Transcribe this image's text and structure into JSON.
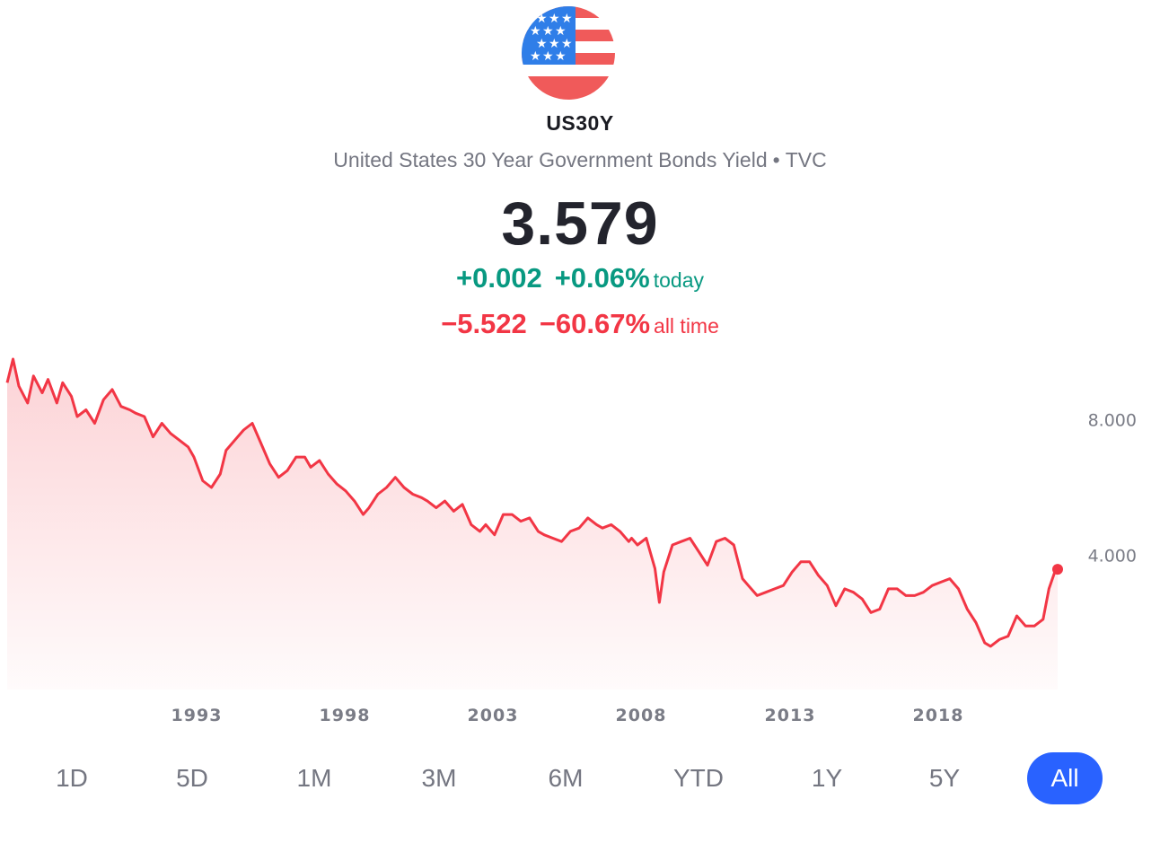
{
  "header": {
    "flag_icon": "us-flag-icon",
    "symbol": "US30Y",
    "name": "United States 30 Year Government Bonds Yield",
    "separator": "•",
    "exchange": "TVC"
  },
  "quote": {
    "price": "3.579",
    "today_change": "+0.002",
    "today_change_pct": "+0.06%",
    "today_label": "today",
    "alltime_change": "−5.522",
    "alltime_change_pct": "−60.67%",
    "alltime_label": "all time"
  },
  "colors": {
    "line": "#f23645",
    "positive": "#089981",
    "negative": "#f23645",
    "active_range": "#2962ff"
  },
  "chart_data": {
    "type": "area",
    "y_axis_labels": [
      "8.000",
      "4.000"
    ],
    "x_tick_labels": [
      "1993",
      "1998",
      "2003",
      "2008",
      "2013",
      "2018"
    ],
    "ylim": [
      0.5,
      9.8
    ],
    "xlim": [
      1986.6,
      2022.6
    ],
    "grid": false,
    "series": [
      {
        "x": [
          1986.6,
          1986.8,
          1987.0,
          1987.3,
          1987.5,
          1987.8,
          1988.0,
          1988.3,
          1988.5,
          1988.8,
          1989.0,
          1989.3,
          1989.6,
          1989.9,
          1990.2,
          1990.5,
          1990.8,
          1991.0,
          1991.3,
          1991.6,
          1991.9,
          1992.2,
          1992.5,
          1992.8,
          1993.0,
          1993.3,
          1993.6,
          1993.9,
          1994.1,
          1994.4,
          1994.7,
          1995.0,
          1995.3,
          1995.6,
          1995.9,
          1996.2,
          1996.5,
          1996.8,
          1997.0,
          1997.3,
          1997.6,
          1997.9,
          1998.2,
          1998.5,
          1998.8,
          1999.0,
          1999.3,
          1999.6,
          1999.9,
          2000.2,
          2000.5,
          2000.8,
          2001.0,
          2001.3,
          2001.6,
          2001.9,
          2002.2,
          2002.5,
          2002.8,
          2003.0,
          2003.3,
          2003.6,
          2003.9,
          2004.2,
          2004.5,
          2004.8,
          2005.0,
          2005.3,
          2005.6,
          2005.9,
          2006.2,
          2006.5,
          2006.8,
          2007.0,
          2007.3,
          2007.6,
          2007.9,
          2008.0,
          2008.2,
          2008.5,
          2008.8,
          2008.95,
          2009.1,
          2009.4,
          2009.7,
          2010.0,
          2010.3,
          2010.6,
          2010.9,
          2011.2,
          2011.5,
          2011.8,
          2012.0,
          2012.3,
          2012.6,
          2012.9,
          2013.2,
          2013.5,
          2013.8,
          2014.1,
          2014.4,
          2014.7,
          2015.0,
          2015.3,
          2015.6,
          2015.9,
          2016.2,
          2016.5,
          2016.8,
          2017.1,
          2017.4,
          2017.7,
          2018.0,
          2018.3,
          2018.6,
          2018.9,
          2019.2,
          2019.5,
          2019.8,
          2020.1,
          2020.3,
          2020.6,
          2020.9,
          2021.2,
          2021.5,
          2021.8,
          2022.1,
          2022.3,
          2022.5,
          2022.6
        ],
        "y": [
          9.1,
          9.8,
          9.0,
          8.5,
          9.3,
          8.8,
          9.2,
          8.5,
          9.1,
          8.7,
          8.1,
          8.3,
          7.9,
          8.6,
          8.9,
          8.4,
          8.3,
          8.2,
          8.1,
          7.5,
          7.9,
          7.6,
          7.4,
          7.2,
          6.9,
          6.2,
          6.0,
          6.4,
          7.1,
          7.4,
          7.7,
          7.9,
          7.3,
          6.7,
          6.3,
          6.5,
          6.9,
          6.9,
          6.6,
          6.8,
          6.4,
          6.1,
          5.9,
          5.6,
          5.2,
          5.4,
          5.8,
          6.0,
          6.3,
          6.0,
          5.8,
          5.7,
          5.6,
          5.4,
          5.6,
          5.3,
          5.5,
          4.9,
          4.7,
          4.9,
          4.6,
          5.2,
          5.2,
          5.0,
          5.1,
          4.7,
          4.6,
          4.5,
          4.4,
          4.7,
          4.8,
          5.1,
          4.9,
          4.8,
          4.9,
          4.7,
          4.4,
          4.5,
          4.3,
          4.5,
          3.6,
          2.6,
          3.5,
          4.3,
          4.4,
          4.5,
          4.1,
          3.7,
          4.4,
          4.5,
          4.3,
          3.3,
          3.1,
          2.8,
          2.9,
          3.0,
          3.1,
          3.5,
          3.8,
          3.8,
          3.4,
          3.1,
          2.5,
          3.0,
          2.9,
          2.7,
          2.3,
          2.4,
          3.0,
          3.0,
          2.8,
          2.8,
          2.9,
          3.1,
          3.2,
          3.3,
          3.0,
          2.4,
          2.0,
          1.4,
          1.3,
          1.5,
          1.6,
          2.2,
          1.9,
          1.9,
          2.1,
          3.0,
          3.5,
          3.58
        ]
      }
    ]
  },
  "ranges": {
    "items": [
      "1D",
      "5D",
      "1M",
      "3M",
      "6M",
      "YTD",
      "1Y",
      "5Y",
      "All"
    ],
    "active": "All"
  }
}
